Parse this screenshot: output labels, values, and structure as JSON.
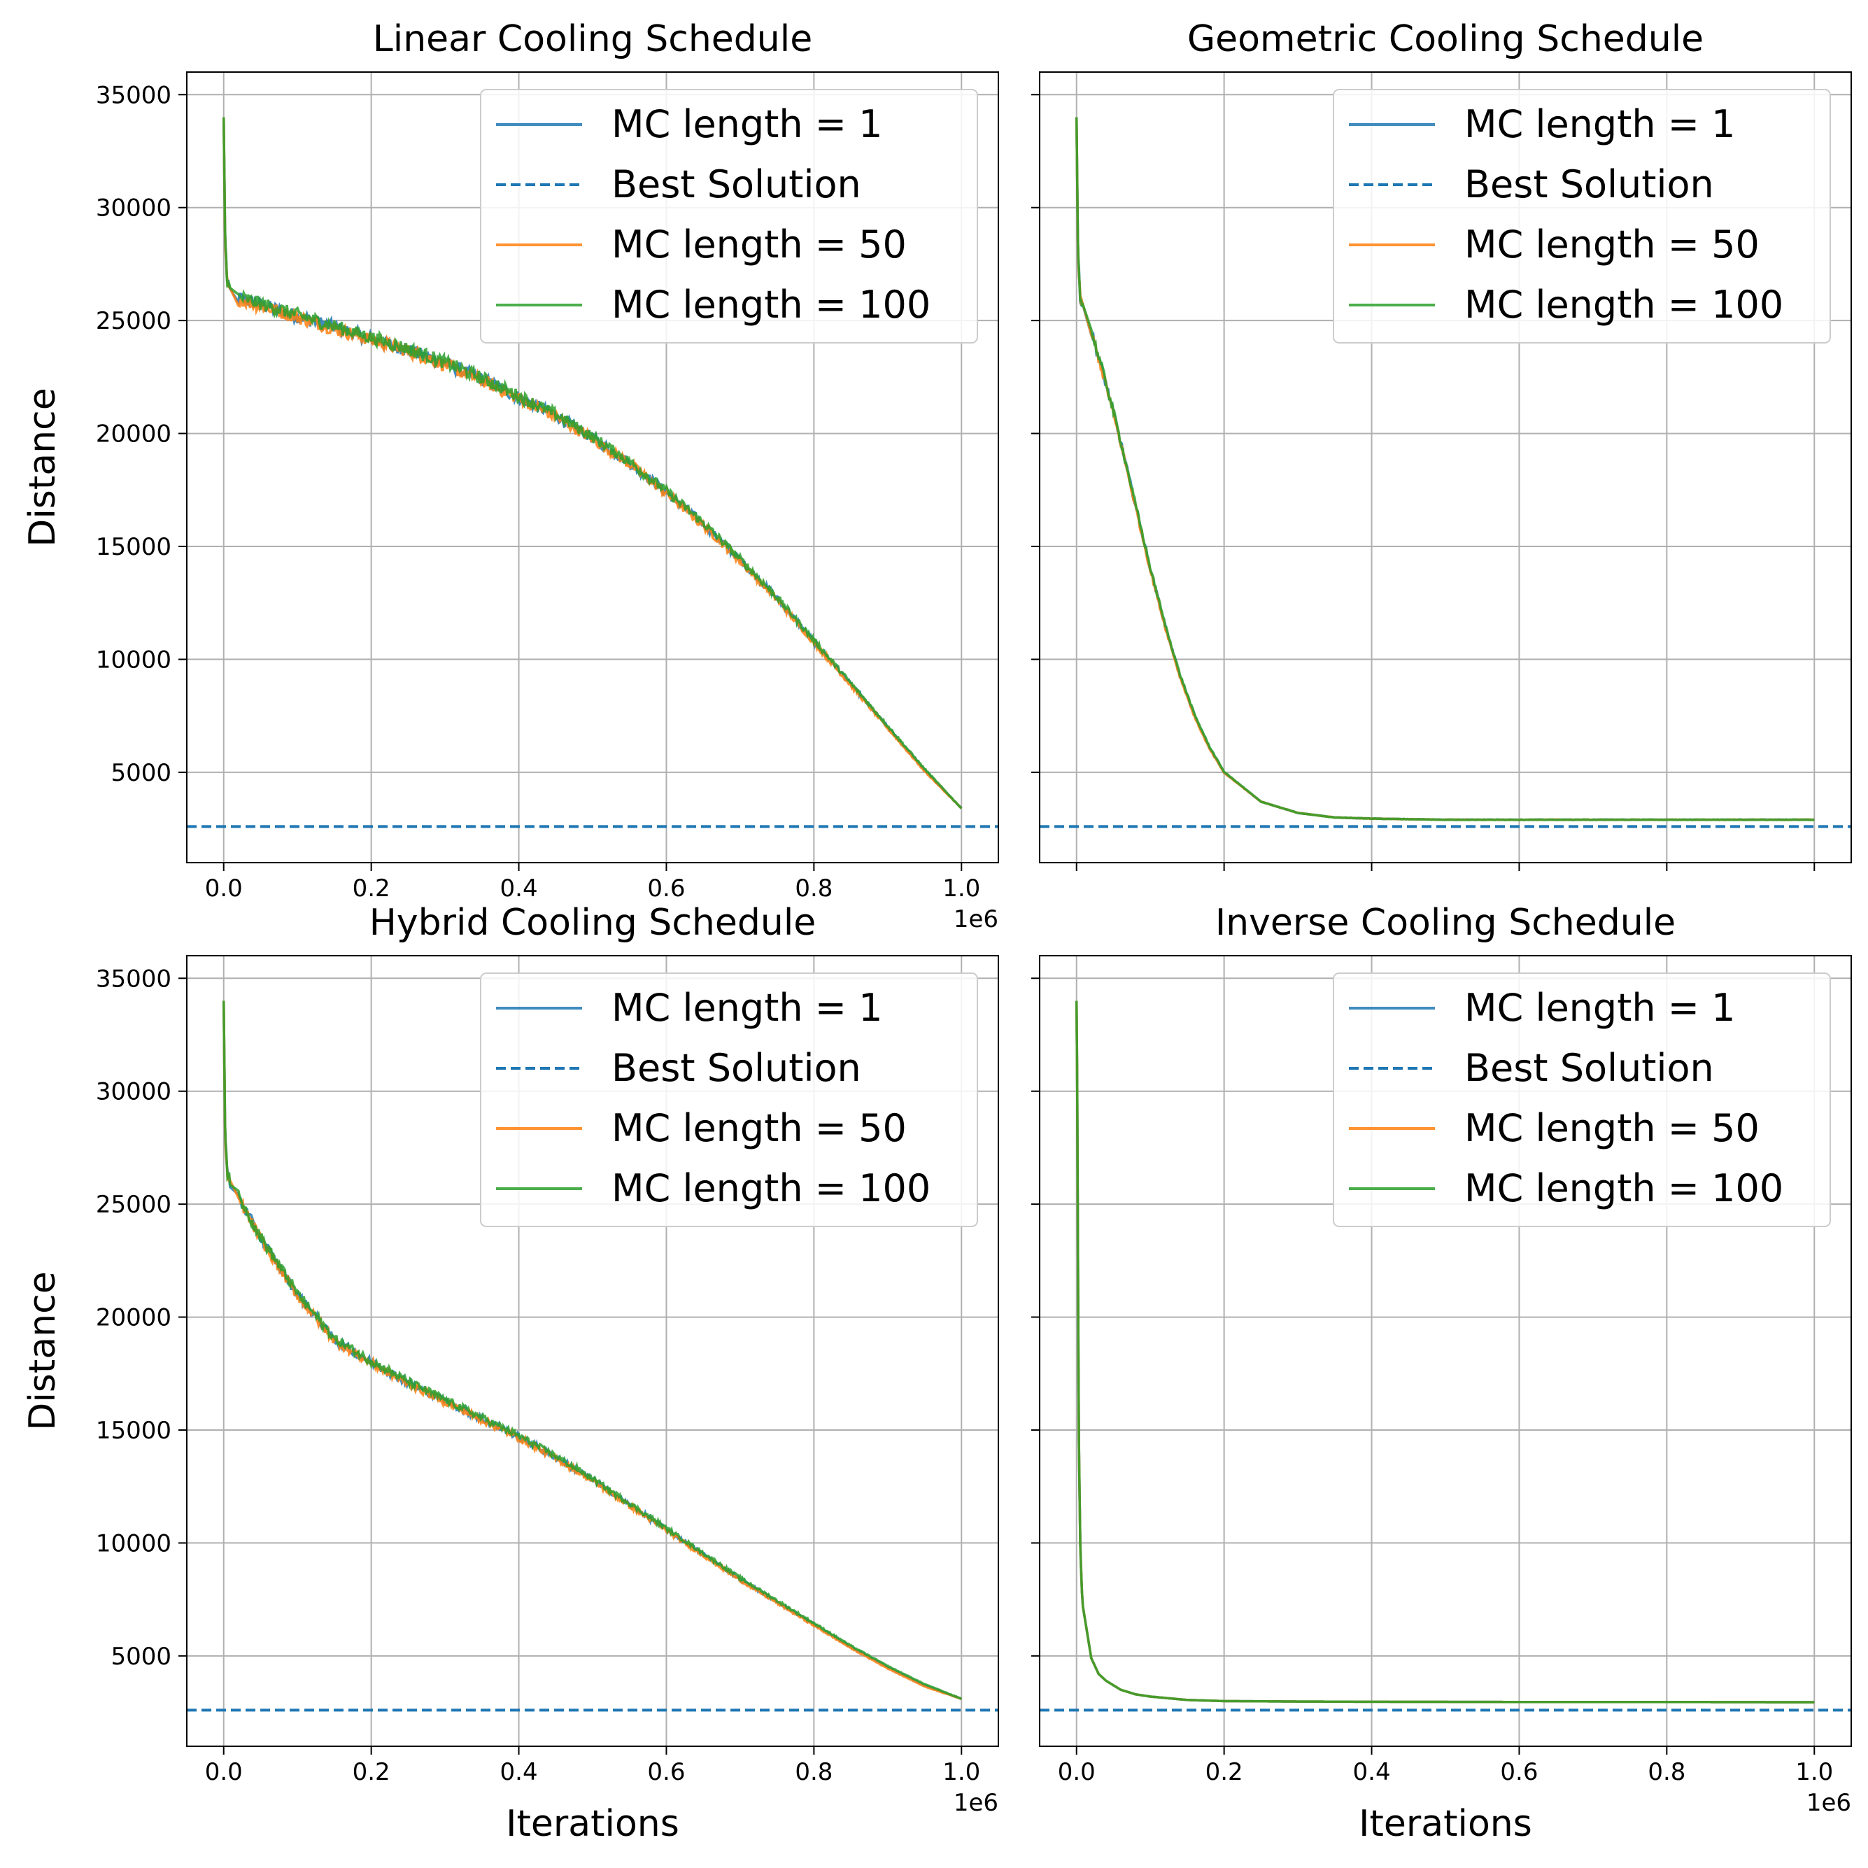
{
  "chart_data": [
    {
      "type": "line",
      "title": "Linear Cooling Schedule",
      "xlabel": "",
      "ylabel": "Distance",
      "xlim": [
        -50000,
        1050000
      ],
      "ylim": [
        1000,
        36000
      ],
      "x_ticks": [
        0,
        200000,
        400000,
        600000,
        800000,
        1000000
      ],
      "x_tick_labels": [
        "0.0",
        "0.2",
        "0.4",
        "0.6",
        "0.8",
        "1.0"
      ],
      "x_offset_label": "1e6",
      "y_ticks": [
        5000,
        10000,
        15000,
        20000,
        25000,
        30000,
        35000
      ],
      "y_tick_labels": [
        "5000",
        "10000",
        "15000",
        "20000",
        "25000",
        "30000",
        "35000"
      ],
      "grid": true,
      "legend_position": "upper right",
      "legend": [
        "MC length = 1",
        "Best Solution",
        "MC length = 50",
        "MC length = 100"
      ],
      "best_solution": 2600,
      "x": [
        0,
        2000,
        5000,
        10000,
        20000,
        50000,
        100000,
        150000,
        200000,
        250000,
        300000,
        350000,
        400000,
        450000,
        500000,
        550000,
        600000,
        650000,
        700000,
        750000,
        800000,
        850000,
        900000,
        950000,
        1000000
      ],
      "series": [
        {
          "name": "MC length = 1",
          "values": [
            34000,
            28500,
            26600,
            26200,
            26000,
            25700,
            25200,
            24700,
            24200,
            23700,
            23100,
            22400,
            21600,
            20800,
            19800,
            18700,
            17400,
            16000,
            14400,
            12700,
            10800,
            8900,
            7000,
            5100,
            3400
          ]
        },
        {
          "name": "MC length = 50",
          "values": [
            34000,
            28400,
            26500,
            26100,
            25950,
            25650,
            25150,
            24650,
            24150,
            23650,
            23050,
            22350,
            21550,
            20750,
            19750,
            18650,
            17350,
            15950,
            14350,
            12650,
            10750,
            8850,
            6950,
            5050,
            3400
          ]
        },
        {
          "name": "MC length = 100",
          "values": [
            34000,
            28600,
            26700,
            26250,
            26050,
            25750,
            25250,
            24750,
            24250,
            23750,
            23150,
            22450,
            21650,
            20850,
            19850,
            18750,
            17450,
            16050,
            14450,
            12750,
            10850,
            8950,
            7050,
            5150,
            3400
          ]
        }
      ]
    },
    {
      "type": "line",
      "title": "Geometric Cooling Schedule",
      "xlabel": "",
      "ylabel": "",
      "xlim": [
        -50000,
        1050000
      ],
      "ylim": [
        1000,
        36000
      ],
      "x_ticks": [
        0,
        200000,
        400000,
        600000,
        800000,
        1000000
      ],
      "x_tick_labels": [
        "",
        "",
        "",
        "",
        "",
        ""
      ],
      "y_ticks": [
        5000,
        10000,
        15000,
        20000,
        25000,
        30000,
        35000
      ],
      "grid": true,
      "legend_position": "upper right",
      "legend": [
        "MC length = 1",
        "Best Solution",
        "MC length = 50",
        "MC length = 100"
      ],
      "best_solution": 2600,
      "x": [
        0,
        2000,
        5000,
        10000,
        20000,
        40000,
        60000,
        80000,
        100000,
        120000,
        140000,
        160000,
        180000,
        200000,
        250000,
        300000,
        350000,
        400000,
        500000,
        600000,
        700000,
        800000,
        900000,
        1000000
      ],
      "series": [
        {
          "name": "MC length = 1",
          "values": [
            34000,
            28000,
            26000,
            25500,
            24500,
            22200,
            19600,
            16800,
            14000,
            11500,
            9300,
            7500,
            6100,
            5000,
            3700,
            3200,
            3000,
            2950,
            2900,
            2900,
            2900,
            2900,
            2900,
            2900
          ]
        },
        {
          "name": "MC length = 50",
          "values": [
            34000,
            27900,
            25950,
            25450,
            24450,
            22150,
            19550,
            16750,
            13950,
            11450,
            9250,
            7450,
            6050,
            4980,
            3700,
            3200,
            3000,
            2950,
            2900,
            2900,
            2900,
            2900,
            2900,
            2900
          ]
        },
        {
          "name": "MC length = 100",
          "values": [
            34000,
            28100,
            26050,
            25550,
            24550,
            22250,
            19650,
            16850,
            14050,
            11550,
            9350,
            7550,
            6150,
            5020,
            3700,
            3200,
            3000,
            2950,
            2900,
            2900,
            2900,
            2900,
            2900,
            2900
          ]
        }
      ]
    },
    {
      "type": "line",
      "title": "Hybrid Cooling Schedule",
      "xlabel": "Iterations",
      "ylabel": "Distance",
      "xlim": [
        -50000,
        1050000
      ],
      "ylim": [
        1000,
        36000
      ],
      "x_ticks": [
        0,
        200000,
        400000,
        600000,
        800000,
        1000000
      ],
      "x_tick_labels": [
        "0.0",
        "0.2",
        "0.4",
        "0.6",
        "0.8",
        "1.0"
      ],
      "x_offset_label": "1e6",
      "y_ticks": [
        5000,
        10000,
        15000,
        20000,
        25000,
        30000,
        35000
      ],
      "y_tick_labels": [
        "5000",
        "10000",
        "15000",
        "20000",
        "25000",
        "30000",
        "35000"
      ],
      "grid": true,
      "legend_position": "upper right",
      "legend": [
        "MC length = 1",
        "Best Solution",
        "MC length = 50",
        "MC length = 100"
      ],
      "best_solution": 2600,
      "x": [
        0,
        2000,
        5000,
        10000,
        20000,
        50000,
        100000,
        150000,
        200000,
        250000,
        300000,
        350000,
        400000,
        450000,
        500000,
        550000,
        600000,
        650000,
        700000,
        750000,
        800000,
        850000,
        900000,
        950000,
        1000000
      ],
      "series": [
        {
          "name": "MC length = 1",
          "values": [
            34000,
            28000,
            26300,
            25800,
            25300,
            23500,
            21000,
            19000,
            18000,
            17100,
            16300,
            15500,
            14700,
            13800,
            12800,
            11700,
            10600,
            9500,
            8400,
            7400,
            6400,
            5400,
            4500,
            3700,
            3100
          ]
        },
        {
          "name": "MC length = 50",
          "values": [
            34000,
            27900,
            26200,
            25700,
            25250,
            23450,
            20950,
            18950,
            17950,
            17050,
            16250,
            15450,
            14650,
            13750,
            12750,
            11650,
            10550,
            9450,
            8350,
            7350,
            6350,
            5350,
            4450,
            3650,
            3100
          ]
        },
        {
          "name": "MC length = 100",
          "values": [
            34000,
            28100,
            26400,
            25900,
            25350,
            23550,
            21050,
            19050,
            18050,
            17150,
            16350,
            15550,
            14750,
            13850,
            12850,
            11750,
            10650,
            9550,
            8450,
            7450,
            6450,
            5450,
            4550,
            3750,
            3100
          ]
        }
      ]
    },
    {
      "type": "line",
      "title": "Inverse Cooling Schedule",
      "xlabel": "Iterations",
      "ylabel": "",
      "xlim": [
        -50000,
        1050000
      ],
      "ylim": [
        1000,
        36000
      ],
      "x_ticks": [
        0,
        200000,
        400000,
        600000,
        800000,
        1000000
      ],
      "x_tick_labels": [
        "0.0",
        "0.2",
        "0.4",
        "0.6",
        "0.8",
        "1.0"
      ],
      "x_offset_label": "1e6",
      "y_ticks": [
        5000,
        10000,
        15000,
        20000,
        25000,
        30000,
        35000
      ],
      "grid": true,
      "legend_position": "upper right",
      "legend": [
        "MC length = 1",
        "Best Solution",
        "MC length = 50",
        "MC length = 100"
      ],
      "best_solution": 2600,
      "x": [
        0,
        1000,
        2000,
        3000,
        5000,
        7000,
        10000,
        15000,
        20000,
        30000,
        40000,
        60000,
        80000,
        100000,
        150000,
        200000,
        300000,
        400000,
        600000,
        800000,
        1000000
      ],
      "series": [
        {
          "name": "MC length = 1",
          "values": [
            34000,
            30000,
            22000,
            15000,
            10000,
            8000,
            6500,
            5500,
            4900,
            4200,
            3900,
            3500,
            3300,
            3200,
            3050,
            3000,
            2980,
            2970,
            2960,
            2960,
            2950
          ]
        },
        {
          "name": "MC length = 50",
          "values": [
            34000,
            30000,
            22000,
            15000,
            10000,
            8000,
            6500,
            5500,
            4900,
            4200,
            3900,
            3500,
            3300,
            3200,
            3050,
            3000,
            2980,
            2970,
            2960,
            2960,
            2950
          ]
        },
        {
          "name": "MC length = 100",
          "values": [
            34000,
            30000,
            22000,
            15000,
            10000,
            8000,
            6500,
            5500,
            4900,
            4200,
            3900,
            3500,
            3300,
            3200,
            3050,
            3000,
            2980,
            2970,
            2960,
            2960,
            2950
          ]
        }
      ]
    }
  ],
  "colors": {
    "mc1": "#1f77b4",
    "best": "#1f77b4",
    "mc50": "#ff7f0e",
    "mc100": "#2ca02c",
    "grid": "#b0b0b0",
    "axis": "#000000"
  },
  "noise": {
    "linear": 300,
    "geometric": 200,
    "hybrid": 250,
    "inverse": 0
  }
}
